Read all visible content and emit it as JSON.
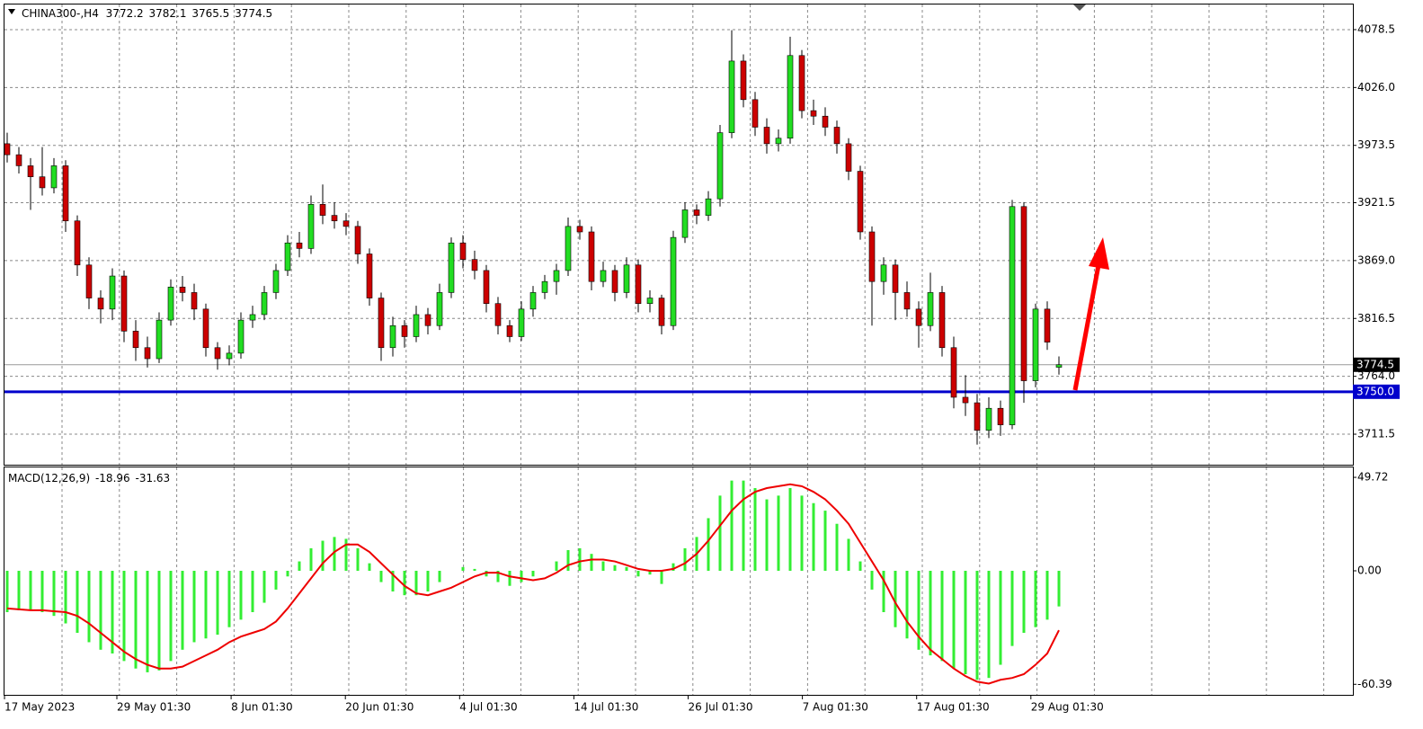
{
  "chart_data": [
    {
      "type": "candlestick",
      "symbol": "CHINA300-,H4",
      "header_values": [
        3772.2,
        3782.1,
        3765.5,
        3774.5
      ],
      "ohlc": [
        [
          3975,
          3985,
          3958,
          3965
        ],
        [
          3965,
          3972,
          3948,
          3955
        ],
        [
          3955,
          3962,
          3915,
          3945
        ],
        [
          3945,
          3972,
          3928,
          3935
        ],
        [
          3935,
          3962,
          3930,
          3955
        ],
        [
          3955,
          3960,
          3895,
          3905
        ],
        [
          3905,
          3910,
          3855,
          3865
        ],
        [
          3865,
          3872,
          3825,
          3835
        ],
        [
          3835,
          3842,
          3812,
          3825
        ],
        [
          3825,
          3862,
          3815,
          3855
        ],
        [
          3855,
          3860,
          3795,
          3805
        ],
        [
          3805,
          3815,
          3778,
          3790
        ],
        [
          3790,
          3800,
          3772,
          3780
        ],
        [
          3780,
          3822,
          3776,
          3815
        ],
        [
          3815,
          3852,
          3810,
          3845
        ],
        [
          3845,
          3855,
          3832,
          3840
        ],
        [
          3840,
          3848,
          3815,
          3825
        ],
        [
          3825,
          3830,
          3782,
          3790
        ],
        [
          3790,
          3795,
          3770,
          3780
        ],
        [
          3780,
          3792,
          3774,
          3785
        ],
        [
          3785,
          3822,
          3780,
          3815
        ],
        [
          3815,
          3828,
          3808,
          3820
        ],
        [
          3820,
          3846,
          3815,
          3840
        ],
        [
          3840,
          3866,
          3834,
          3860
        ],
        [
          3860,
          3892,
          3855,
          3885
        ],
        [
          3885,
          3895,
          3872,
          3880
        ],
        [
          3880,
          3928,
          3875,
          3920
        ],
        [
          3920,
          3938,
          3902,
          3910
        ],
        [
          3910,
          3922,
          3898,
          3905
        ],
        [
          3905,
          3912,
          3892,
          3900
        ],
        [
          3900,
          3905,
          3866,
          3875
        ],
        [
          3875,
          3880,
          3828,
          3835
        ],
        [
          3835,
          3840,
          3778,
          3790
        ],
        [
          3790,
          3818,
          3782,
          3810
        ],
        [
          3810,
          3815,
          3790,
          3800
        ],
        [
          3800,
          3828,
          3795,
          3820
        ],
        [
          3820,
          3826,
          3802,
          3810
        ],
        [
          3810,
          3848,
          3806,
          3840
        ],
        [
          3840,
          3890,
          3835,
          3885
        ],
        [
          3885,
          3892,
          3862,
          3870
        ],
        [
          3870,
          3878,
          3852,
          3860
        ],
        [
          3860,
          3865,
          3822,
          3830
        ],
        [
          3830,
          3836,
          3802,
          3810
        ],
        [
          3810,
          3815,
          3795,
          3800
        ],
        [
          3800,
          3832,
          3796,
          3825
        ],
        [
          3825,
          3846,
          3818,
          3840
        ],
        [
          3840,
          3856,
          3834,
          3850
        ],
        [
          3850,
          3866,
          3838,
          3860
        ],
        [
          3860,
          3908,
          3855,
          3900
        ],
        [
          3900,
          3906,
          3888,
          3895
        ],
        [
          3895,
          3900,
          3842,
          3850
        ],
        [
          3850,
          3868,
          3845,
          3860
        ],
        [
          3860,
          3865,
          3832,
          3840
        ],
        [
          3840,
          3872,
          3835,
          3865
        ],
        [
          3865,
          3870,
          3822,
          3830
        ],
        [
          3830,
          3842,
          3822,
          3835
        ],
        [
          3835,
          3838,
          3802,
          3810
        ],
        [
          3810,
          3896,
          3806,
          3890
        ],
        [
          3890,
          3922,
          3885,
          3915
        ],
        [
          3915,
          3920,
          3902,
          3910
        ],
        [
          3910,
          3932,
          3905,
          3925
        ],
        [
          3925,
          3992,
          3918,
          3985
        ],
        [
          3985,
          4078,
          3980,
          4050
        ],
        [
          4050,
          4056,
          4008,
          4015
        ],
        [
          4015,
          4022,
          3982,
          3990
        ],
        [
          3990,
          3998,
          3966,
          3975
        ],
        [
          3975,
          3988,
          3968,
          3980
        ],
        [
          3980,
          4072,
          3975,
          4055
        ],
        [
          4055,
          4060,
          3998,
          4005
        ],
        [
          4005,
          4015,
          3992,
          4000
        ],
        [
          4000,
          4008,
          3982,
          3990
        ],
        [
          3990,
          3996,
          3966,
          3975
        ],
        [
          3975,
          3980,
          3942,
          3950
        ],
        [
          3950,
          3955,
          3888,
          3895
        ],
        [
          3895,
          3900,
          3810,
          3850
        ],
        [
          3850,
          3872,
          3838,
          3865
        ],
        [
          3865,
          3870,
          3815,
          3840
        ],
        [
          3840,
          3850,
          3818,
          3825
        ],
        [
          3825,
          3832,
          3790,
          3810
        ],
        [
          3810,
          3858,
          3805,
          3840
        ],
        [
          3840,
          3846,
          3782,
          3790
        ],
        [
          3790,
          3800,
          3735,
          3745
        ],
        [
          3745,
          3765,
          3728,
          3740
        ],
        [
          3740,
          3748,
          3702,
          3715
        ],
        [
          3715,
          3745,
          3708,
          3735
        ],
        [
          3735,
          3742,
          3710,
          3720
        ],
        [
          3720,
          3924,
          3716,
          3918
        ],
        [
          3918,
          3922,
          3740,
          3760
        ],
        [
          3760,
          3830,
          3754,
          3825
        ],
        [
          3825,
          3832,
          3788,
          3795
        ],
        [
          3772.2,
          3782.1,
          3765.5,
          3774.5
        ]
      ],
      "bull_color": "#22dd22",
      "bear_color": "#cc0000",
      "ylim": [
        3683.8,
        4101.3
      ],
      "yticks": [
        4078.5,
        {
          "value": 4026,
          "label": "4026.0"
        },
        3973.5,
        3921.5,
        {
          "value": 3869,
          "label": "3869.0"
        },
        3816.5,
        {
          "value": 3764,
          "label": "3764.0"
        },
        3711.5
      ],
      "grid": true,
      "last_price": 3774.5,
      "level": {
        "value": 3750,
        "label": "3750.0"
      },
      "level_color": "#0000cc",
      "x_labels": [
        "17 May 2023",
        "29 May 01:30",
        "8 Jun 01:30",
        "20 Jun 01:30",
        "4 Jul 01:30",
        "14 Jul 01:30",
        "26 Jul 01:30",
        "7 Aug 01:30",
        "17 Aug 01:30",
        "29 Aug 01:30"
      ]
    },
    {
      "type": "macd",
      "label": "MACD(12,26,9)",
      "header_values": [
        -18.96,
        -31.63
      ],
      "histogram": [
        -22,
        -21,
        -21,
        -22,
        -24,
        -28,
        -33,
        -38,
        -42,
        -44,
        -48,
        -52,
        -54,
        -53,
        -48,
        -42,
        -38,
        -36,
        -34,
        -30,
        -26,
        -22,
        -17,
        -10,
        -3,
        5,
        12,
        16,
        18,
        17,
        12,
        4,
        -6,
        -11,
        -13,
        -13,
        -11,
        -6,
        0,
        2,
        1,
        -3,
        -6,
        -8,
        -6,
        -3,
        0,
        5,
        11,
        12,
        9,
        5,
        3,
        2,
        -3,
        -2,
        -7,
        4,
        12,
        18,
        28,
        40,
        48,
        48,
        44,
        38,
        40,
        44,
        40,
        36,
        32,
        25,
        17,
        5,
        -10,
        -22,
        -30,
        -36,
        -42,
        -45,
        -48,
        -52,
        -55,
        -58,
        -57,
        -50,
        -40,
        -33,
        -30,
        -26,
        -18.96
      ],
      "histogram_color": "#33ee33",
      "signal": [
        -20,
        -20.5,
        -21,
        -21,
        -21.5,
        -22,
        -24,
        -28,
        -33,
        -38,
        -43,
        -47,
        -50,
        -52,
        -52,
        -51,
        -48,
        -45,
        -42,
        -38,
        -35,
        -33,
        -31,
        -27,
        -20,
        -12,
        -4,
        4,
        10,
        14,
        14,
        10,
        4,
        -2,
        -8,
        -12,
        -13,
        -11,
        -9,
        -6,
        -3,
        -1,
        -1,
        -3,
        -4,
        -5,
        -4,
        -1,
        3,
        5,
        6,
        6,
        5,
        3,
        1,
        0,
        0,
        1,
        4,
        9,
        16,
        24,
        32,
        38,
        42,
        44,
        45,
        46,
        45,
        42,
        38,
        32,
        25,
        15,
        5,
        -5,
        -17,
        -27,
        -35,
        -42,
        -47,
        -52,
        -56,
        -59,
        -60,
        -58,
        -57,
        -55,
        -50,
        -44,
        -31.63
      ],
      "signal_color": "#ee0000",
      "ylim": [
        -66,
        55
      ],
      "yticks": [
        49.72,
        {
          "value": 0,
          "label": "0.00"
        },
        -60.39
      ]
    }
  ]
}
